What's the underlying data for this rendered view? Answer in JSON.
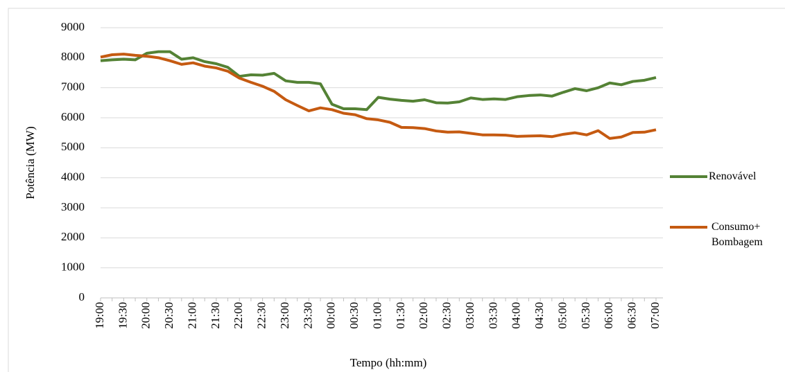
{
  "chart_data": {
    "type": "line",
    "x_label": "Tempo (hh:mm)",
    "y_label": "Potência (MW)",
    "categories": [
      "19:00",
      null,
      "19:30",
      null,
      "20:00",
      null,
      "20:30",
      null,
      "21:00",
      null,
      "21:30",
      null,
      "22:00",
      null,
      "22:30",
      null,
      "23:00",
      null,
      "23:30",
      null,
      "00:00",
      null,
      "00:30",
      null,
      "01:00",
      null,
      "01:30",
      null,
      "02:00",
      null,
      "02:30",
      null,
      "03:00",
      null,
      "03:30",
      null,
      "04:00",
      null,
      "04:30",
      null,
      "05:00",
      null,
      "05:30",
      null,
      "06:00",
      null,
      "06:30",
      null,
      "07:00"
    ],
    "series": [
      {
        "name": "Renovável",
        "color": "#548235",
        "values": [
          7900,
          7930,
          7950,
          7930,
          8150,
          8200,
          8200,
          7950,
          8000,
          7870,
          7800,
          7680,
          7380,
          7430,
          7420,
          7480,
          7230,
          7180,
          7180,
          7130,
          6450,
          6300,
          6300,
          6270,
          6680,
          6620,
          6580,
          6550,
          6600,
          6500,
          6490,
          6530,
          6660,
          6610,
          6630,
          6610,
          6700,
          6740,
          6760,
          6720,
          6850,
          6970,
          6900,
          7000,
          7160,
          7100,
          7210,
          7250,
          7340
        ]
      },
      {
        "name": "Consumo+ Bombagem",
        "color": "#c55a11",
        "values": [
          8020,
          8100,
          8120,
          8080,
          8050,
          8000,
          7900,
          7780,
          7830,
          7720,
          7660,
          7550,
          7320,
          7180,
          7050,
          6880,
          6600,
          6410,
          6230,
          6330,
          6270,
          6150,
          6100,
          5970,
          5930,
          5850,
          5680,
          5670,
          5640,
          5560,
          5520,
          5530,
          5480,
          5430,
          5430,
          5420,
          5380,
          5390,
          5400,
          5370,
          5450,
          5500,
          5430,
          5570,
          5310,
          5360,
          5510,
          5520,
          5600
        ]
      }
    ],
    "ylim": [
      0,
      9000
    ],
    "yticks": [
      0,
      1000,
      2000,
      3000,
      4000,
      5000,
      6000,
      7000,
      8000,
      9000
    ],
    "grid": true,
    "legend": "right"
  }
}
